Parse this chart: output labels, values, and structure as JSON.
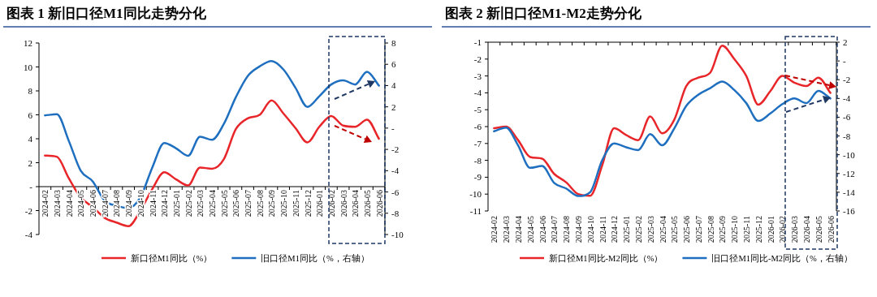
{
  "chart_data": [
    {
      "type": "line",
      "title": "图表 1 新旧口径M1同比走势分化",
      "legend": "bottom",
      "categories": [
        "2024-02",
        "2024-03",
        "2024-04",
        "2024-05",
        "2024-06",
        "2024-07",
        "2024-08",
        "2024-09",
        "2024-10",
        "2024-11",
        "2024-12",
        "2025-01",
        "2025-02",
        "2025-03",
        "2025-04",
        "2025-05",
        "2025-06",
        "2025-07",
        "2025-08",
        "2025-09",
        "2025-10",
        "2025-11",
        "2025-12",
        "2026-01",
        "2026-02",
        "2026-03",
        "2026-04",
        "2026-05",
        "2026-06"
      ],
      "ylim": [
        -4,
        12
      ],
      "yticks": [
        -4,
        -2,
        {
          "value": 0,
          "label": "-"
        },
        2,
        4,
        6,
        8,
        10,
        12
      ],
      "y2lim": [
        -10,
        8
      ],
      "y2ticks": [
        -10,
        -8,
        -6,
        -4,
        -2,
        {
          "value": 0,
          "label": "-"
        },
        2,
        4,
        6,
        8
      ],
      "series": [
        {
          "name": "新口径M1同比（%）",
          "color": "#e8262a",
          "values": [
            2.6,
            2.5,
            0.7,
            -0.9,
            -1.7,
            -2.6,
            -3.0,
            -3.3,
            -2.0,
            -0.2,
            1.2,
            0.6,
            0.1,
            1.6,
            1.5,
            2.3,
            4.8,
            5.7,
            6.0,
            7.2,
            6.1,
            4.9,
            3.7,
            5.0,
            5.9,
            5.1,
            5.0,
            5.6,
            4.0
          ]
        },
        {
          "name": "旧口径M1同比（%，右轴）",
          "color": "#1f6fc0",
          "axis": "y2",
          "values": [
            1.2,
            1.3,
            -1.2,
            -4.0,
            -5.0,
            -6.8,
            -7.3,
            -7.5,
            -6.5,
            -3.7,
            -1.4,
            -1.9,
            -2.6,
            -0.8,
            -1.1,
            0.4,
            2.9,
            4.9,
            5.8,
            6.3,
            5.5,
            3.8,
            2.0,
            3.0,
            4.1,
            4.5,
            4.1,
            5.3,
            4.0
          ]
        }
      ]
    },
    {
      "type": "line",
      "title": "图表 2 新旧口径M1-M2走势分化",
      "legend": "bottom",
      "categories": [
        "2024-02",
        "2024-03",
        "2024-04",
        "2024-05",
        "2024-06",
        "2024-07",
        "2024-08",
        "2024-09",
        "2024-10",
        "2024-11",
        "2024-12",
        "2025-01",
        "2025-02",
        "2025-03",
        "2025-04",
        "2025-05",
        "2025-06",
        "2025-07",
        "2025-08",
        "2025-09",
        "2025-10",
        "2025-11",
        "2025-12",
        "2026-01",
        "2026-02",
        "2026-03",
        "2026-04",
        "2026-05",
        "2026-06"
      ],
      "ylim": [
        -11,
        -1
      ],
      "yticks": [
        -11,
        -10,
        -9,
        -8,
        -7,
        -6,
        -5,
        -4,
        -3,
        -2,
        -1
      ],
      "y2lim": [
        -16,
        2
      ],
      "y2ticks": [
        -16,
        -14,
        -12,
        -10,
        -8,
        -6,
        -4,
        -2,
        {
          "value": 0,
          "label": "-"
        },
        2
      ],
      "series": [
        {
          "name": "新口径M1同比-M2同比（%）",
          "color": "#e8262a",
          "values": [
            -6.1,
            -6.0,
            -6.8,
            -7.8,
            -7.9,
            -8.8,
            -9.3,
            -10.0,
            -10.1,
            -8.3,
            -6.1,
            -6.5,
            -6.8,
            -5.4,
            -6.4,
            -5.6,
            -3.6,
            -3.1,
            -2.8,
            -1.2,
            -2.0,
            -3.0,
            -4.7,
            -3.9,
            -3.0,
            -3.4,
            -3.6,
            -3.1,
            -4.0
          ]
        },
        {
          "name": "旧口径M1同比-M2同比（%，右轴）",
          "color": "#1f6fc0",
          "axis": "y2",
          "values": [
            -7.5,
            -7.1,
            -9.0,
            -11.4,
            -11.2,
            -13.0,
            -13.6,
            -14.4,
            -14.0,
            -10.6,
            -8.8,
            -9.2,
            -9.5,
            -7.8,
            -9.0,
            -7.2,
            -4.8,
            -3.6,
            -2.9,
            -2.2,
            -3.1,
            -4.5,
            -6.4,
            -5.6,
            -4.6,
            -4.0,
            -4.5,
            -3.2,
            -4.0
          ]
        }
      ]
    }
  ]
}
